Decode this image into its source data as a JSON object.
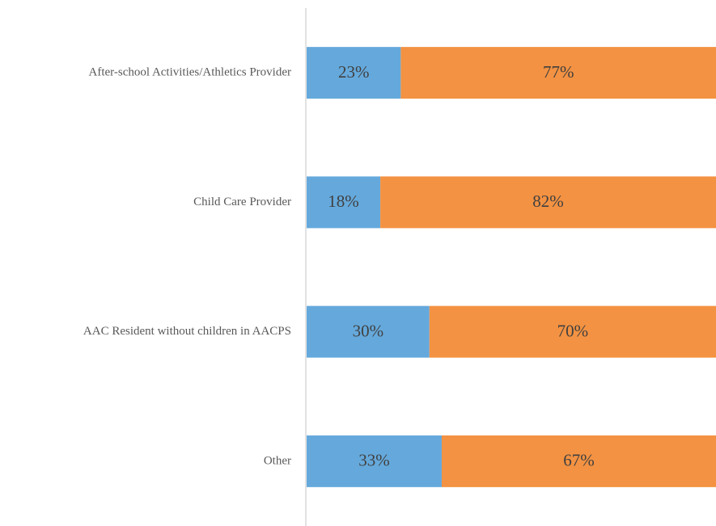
{
  "chart_data": {
    "type": "stacked-bar-horizontal",
    "categories": [
      "After-school Activities/Athletics Provider",
      "Child Care Provider",
      "AAC Resident without children in AACPS",
      "Other"
    ],
    "series": [
      {
        "color": "#65a9dc",
        "values": [
          23,
          18,
          30,
          33
        ],
        "value_labels": [
          "23%",
          "18%",
          "30%",
          "33%"
        ]
      },
      {
        "color": "#f39242",
        "values": [
          77,
          82,
          70,
          67
        ],
        "value_labels": [
          "77%",
          "82%",
          "70%",
          "67%"
        ]
      }
    ],
    "xlim": [
      0,
      100
    ]
  }
}
